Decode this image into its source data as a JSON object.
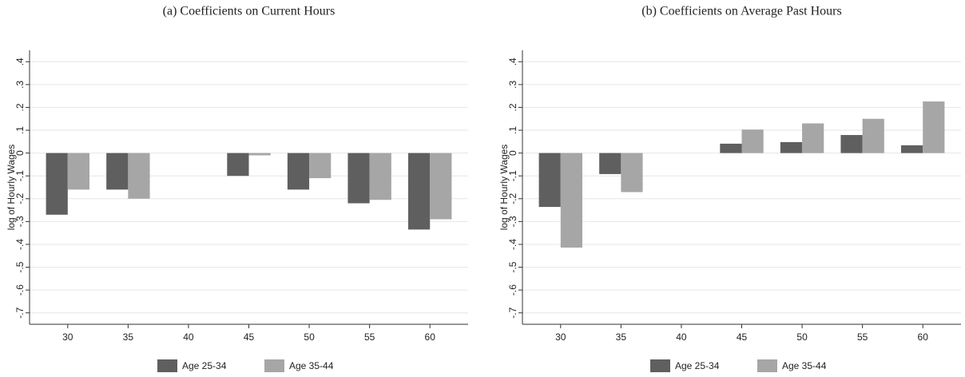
{
  "chart_data": [
    {
      "type": "bar",
      "title": "(a) Coefficients on Current Hours",
      "y_label": "log of Hourly Wages",
      "categories": [
        "30",
        "35",
        "40",
        "45",
        "50",
        "55",
        "60"
      ],
      "series": [
        {
          "name": "Age 25-34",
          "color": "#5f5f5f",
          "values": [
            -0.27,
            -0.16,
            null,
            -0.1,
            -0.16,
            -0.22,
            -0.335
          ]
        },
        {
          "name": "Age 35-44",
          "color": "#a6a6a6",
          "values": [
            -0.16,
            -0.2,
            null,
            -0.01,
            -0.11,
            -0.205,
            -0.29
          ]
        }
      ],
      "ylim": [
        -0.75,
        0.45
      ],
      "yticks": [
        {
          "value": 0.4,
          "label": ".4"
        },
        {
          "value": 0.3,
          "label": ".3"
        },
        {
          "value": 0.2,
          "label": ".2"
        },
        {
          "value": 0.1,
          "label": ".1"
        },
        0,
        {
          "value": -0.1,
          "label": "-.1"
        },
        {
          "value": -0.2,
          "label": "-.2"
        },
        {
          "value": -0.3,
          "label": "-.3"
        },
        {
          "value": -0.4,
          "label": "-.4"
        },
        {
          "value": -0.5,
          "label": "-.5"
        },
        {
          "value": -0.6,
          "label": "-.6"
        },
        {
          "value": -0.7,
          "label": "-.7"
        }
      ],
      "grid": true
    },
    {
      "type": "bar",
      "title": "(b) Coefficients on Average Past Hours",
      "y_label": "log of Hourly Wages",
      "categories": [
        "30",
        "35",
        "40",
        "45",
        "50",
        "55",
        "60"
      ],
      "series": [
        {
          "name": "Age 25-34",
          "color": "#5f5f5f",
          "values": [
            -0.236,
            -0.092,
            null,
            0.041,
            0.048,
            0.079,
            0.034
          ]
        },
        {
          "name": "Age 35-44",
          "color": "#a6a6a6",
          "values": [
            -0.414,
            -0.171,
            null,
            0.103,
            0.13,
            0.15,
            0.226
          ]
        }
      ],
      "ylim": [
        -0.75,
        0.45
      ],
      "yticks": [
        {
          "value": 0.4,
          "label": ".4"
        },
        {
          "value": 0.3,
          "label": ".3"
        },
        {
          "value": 0.2,
          "label": ".2"
        },
        {
          "value": 0.1,
          "label": ".1"
        },
        0,
        {
          "value": -0.1,
          "label": "-.1"
        },
        {
          "value": -0.2,
          "label": "-.2"
        },
        {
          "value": -0.3,
          "label": "-.3"
        },
        {
          "value": -0.4,
          "label": "-.4"
        },
        {
          "value": -0.5,
          "label": "-.5"
        },
        {
          "value": -0.6,
          "label": "-.6"
        },
        {
          "value": -0.7,
          "label": "-.7"
        }
      ],
      "grid": true
    }
  ]
}
